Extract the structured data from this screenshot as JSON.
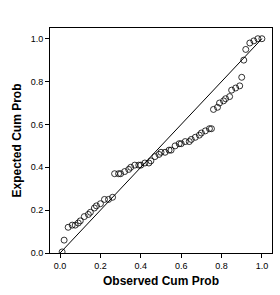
{
  "chart_data": {
    "type": "scatter",
    "x_label": "Observed Cum Prob",
    "y_label": "Expected Cum Prob",
    "xlim": [
      -0.05,
      1.05
    ],
    "ylim": [
      0,
      1.05
    ],
    "xticks": [
      {
        "value": 0,
        "label": "0.0"
      },
      0.2,
      0.4,
      0.6,
      0.8,
      {
        "value": 1,
        "label": "1.0"
      }
    ],
    "yticks": [
      {
        "value": 0,
        "label": "0.0"
      },
      0.2,
      0.4,
      0.6,
      0.8,
      {
        "value": 1,
        "label": "1.0"
      }
    ],
    "grid": false,
    "series": [
      {
        "type": "scatter",
        "marker": "open_circle",
        "color": "#000000",
        "x": [
          0.01,
          0.02,
          0.04,
          0.06,
          0.075,
          0.09,
          0.1,
          0.12,
          0.14,
          0.15,
          0.17,
          0.18,
          0.2,
          0.22,
          0.24,
          0.26,
          0.27,
          0.29,
          0.3,
          0.32,
          0.34,
          0.35,
          0.37,
          0.39,
          0.4,
          0.42,
          0.44,
          0.45,
          0.47,
          0.49,
          0.5,
          0.52,
          0.54,
          0.55,
          0.57,
          0.59,
          0.6,
          0.62,
          0.64,
          0.65,
          0.67,
          0.69,
          0.7,
          0.72,
          0.74,
          0.75,
          0.76,
          0.78,
          0.79,
          0.81,
          0.82,
          0.84,
          0.85,
          0.87,
          0.89,
          0.9,
          0.91,
          0.92,
          0.94,
          0.96,
          0.98,
          1.0
        ],
        "values": [
          0.005,
          0.06,
          0.12,
          0.13,
          0.13,
          0.14,
          0.15,
          0.17,
          0.18,
          0.19,
          0.21,
          0.22,
          0.23,
          0.25,
          0.25,
          0.26,
          0.37,
          0.37,
          0.37,
          0.38,
          0.39,
          0.4,
          0.41,
          0.41,
          0.41,
          0.42,
          0.42,
          0.43,
          0.45,
          0.46,
          0.47,
          0.47,
          0.48,
          0.48,
          0.5,
          0.51,
          0.51,
          0.52,
          0.52,
          0.53,
          0.54,
          0.55,
          0.56,
          0.57,
          0.58,
          0.58,
          0.67,
          0.68,
          0.7,
          0.71,
          0.72,
          0.73,
          0.76,
          0.77,
          0.78,
          0.82,
          0.9,
          0.95,
          0.98,
          0.99,
          1.0,
          1.0
        ]
      },
      {
        "type": "line",
        "line_style": "solid",
        "color": "#000000",
        "x": [
          0,
          1
        ],
        "values": [
          0,
          1
        ]
      }
    ]
  }
}
